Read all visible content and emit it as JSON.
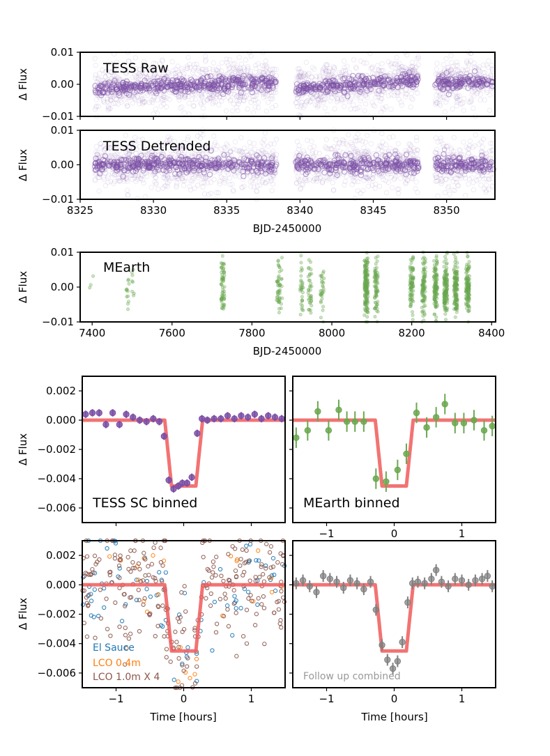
{
  "colors": {
    "tess": "#7b4fa6",
    "mearth": "#6aa84f",
    "model": "#f05a5a",
    "el_sauce": "#1f77b4",
    "lco04": "#ff7f0e",
    "lco10": "#8c564b",
    "combined": "#7f7f7f",
    "followup_label": "#999999"
  },
  "chart_data": [
    {
      "id": "tess_raw",
      "type": "scatter",
      "label": "TESS Raw",
      "ylabel": "Δ Flux",
      "xlabel": "",
      "xlim": [
        8325,
        8353.3
      ],
      "ylim": [
        -0.01,
        0.01
      ],
      "xticks": [
        8325,
        8330,
        8335,
        8340,
        8345,
        8350
      ],
      "yticks": [
        -0.01,
        0.0,
        0.01
      ],
      "ytick_labels": [
        "−0.01",
        "0.00",
        "0.01"
      ],
      "segments": [
        [
          8326.0,
          8338.4
        ],
        [
          8339.7,
          8348.1
        ],
        [
          8349.2,
          8353.2
        ]
      ],
      "trend": [
        [
          8326.0,
          -0.0015
        ],
        [
          8338.4,
          0.0007
        ],
        [
          8339.7,
          -0.0015
        ],
        [
          8348.1,
          0.0012
        ],
        [
          8349.2,
          0.0004
        ],
        [
          8353.2,
          0.0012
        ]
      ],
      "scatter": 0.0035
    },
    {
      "id": "tess_det",
      "type": "scatter",
      "label": "TESS Detrended",
      "ylabel": "Δ Flux",
      "xlabel": "BJD-2450000",
      "xlim": [
        8325,
        8353.3
      ],
      "ylim": [
        -0.01,
        0.01
      ],
      "xticks": [
        8325,
        8330,
        8335,
        8340,
        8345,
        8350
      ],
      "yticks": [
        -0.01,
        0.0,
        0.01
      ],
      "ytick_labels": [
        "−0.01",
        "0.00",
        "0.01"
      ],
      "segments": [
        [
          8326.0,
          8338.4
        ],
        [
          8339.7,
          8348.1
        ],
        [
          8349.2,
          8353.2
        ]
      ],
      "trend": [
        [
          8326.0,
          0.0
        ],
        [
          8353.2,
          0.0
        ]
      ],
      "scatter": 0.0035
    },
    {
      "id": "mearth",
      "type": "scatter",
      "label": "MEarth",
      "ylabel": "Δ Flux",
      "xlabel": "BJD-2450000",
      "xlim": [
        7370,
        8410
      ],
      "ylim": [
        -0.01,
        0.01
      ],
      "xticks": [
        7400,
        7600,
        7800,
        8000,
        8200,
        8400
      ],
      "yticks": [
        -0.01,
        0.0,
        0.01
      ],
      "ytick_labels": [
        "−0.01",
        "0.00",
        "0.01"
      ],
      "groups": [
        [
          7398,
          3
        ],
        [
          7488,
          12
        ],
        [
          7501,
          8
        ],
        [
          7727,
          60
        ],
        [
          7866,
          35
        ],
        [
          7872,
          15
        ],
        [
          7924,
          30
        ],
        [
          7945,
          35
        ],
        [
          7976,
          30
        ],
        [
          8086,
          160
        ],
        [
          8111,
          70
        ],
        [
          8200,
          80
        ],
        [
          8230,
          90
        ],
        [
          8260,
          110
        ],
        [
          8285,
          130
        ],
        [
          8310,
          130
        ],
        [
          8340,
          120
        ]
      ],
      "scatter": 0.004
    },
    {
      "id": "tess_binned",
      "type": "scatter",
      "label": "TESS SC binned",
      "ylabel": "Δ Flux",
      "xlabel": "",
      "xlim": [
        -1.5,
        1.5
      ],
      "ylim": [
        -0.007,
        0.003
      ],
      "yticks": [
        0.002,
        0.0,
        -0.002,
        -0.004,
        -0.006
      ],
      "ytick_labels": [
        "0.002",
        "0.000",
        "−0.002",
        "−0.004",
        "−0.006"
      ],
      "x": [
        -1.45,
        -1.35,
        -1.25,
        -1.15,
        -1.05,
        -0.95,
        -0.85,
        -0.75,
        -0.65,
        -0.55,
        -0.45,
        -0.36,
        -0.29,
        -0.22,
        -0.15,
        -0.08,
        -0.02,
        0.05,
        0.12,
        0.2,
        0.27,
        0.35,
        0.45,
        0.55,
        0.65,
        0.75,
        0.85,
        0.95,
        1.05,
        1.15,
        1.25,
        1.35,
        1.45
      ],
      "y": [
        0.0004,
        0.0005,
        0.0005,
        -0.0003,
        0.0005,
        -0.0003,
        0.0004,
        0.0002,
        0.0,
        -0.0001,
        0.0001,
        -0.0001,
        -0.0011,
        -0.0041,
        -0.0047,
        -0.0045,
        -0.0043,
        -0.0043,
        -0.0039,
        -0.0009,
        0.0001,
        0.0,
        0.0001,
        0.0001,
        0.0003,
        0.0001,
        0.0003,
        0.0002,
        0.0004,
        0.0001,
        0.0003,
        0.0002,
        0.0001
      ],
      "err": 0.00025
    },
    {
      "id": "mearth_binned",
      "type": "scatter",
      "label": "MEarth binned",
      "ylabel": "",
      "xlabel": "",
      "xlim": [
        -1.5,
        1.5
      ],
      "ylim": [
        -0.007,
        0.003
      ],
      "xticks": [
        -1,
        0,
        1
      ],
      "xtick_labels": [
        "−1",
        "0",
        "1"
      ],
      "x": [
        -1.45,
        -1.28,
        -1.13,
        -0.97,
        -0.82,
        -0.7,
        -0.58,
        -0.45,
        -0.27,
        -0.12,
        0.05,
        0.18,
        0.33,
        0.48,
        0.62,
        0.75,
        0.9,
        1.03,
        1.18,
        1.33,
        1.45
      ],
      "y": [
        -0.0012,
        -0.0007,
        0.0006,
        -0.0007,
        0.0007,
        -0.0001,
        -0.0001,
        -0.0001,
        -0.004,
        -0.0042,
        -0.0034,
        -0.0023,
        0.0005,
        -0.0005,
        0.0002,
        0.0011,
        -0.0002,
        -0.0002,
        0.0,
        -0.0007,
        -0.0004
      ],
      "err": 0.0007
    },
    {
      "id": "followup",
      "type": "scatter",
      "ylabel": "Δ Flux",
      "xlabel": "Time [hours]",
      "xlim": [
        -1.5,
        1.5
      ],
      "ylim": [
        -0.007,
        0.003
      ],
      "xticks": [
        -1,
        0,
        1
      ],
      "xtick_labels": [
        "−1",
        "0",
        "1"
      ],
      "yticks": [
        0.002,
        0.0,
        -0.002,
        -0.004,
        -0.006
      ],
      "ytick_labels": [
        "0.002",
        "0.000",
        "−0.002",
        "−0.004",
        "−0.006"
      ],
      "legend": [
        {
          "name": "El Sauce",
          "color": "#1f77b4"
        },
        {
          "name": "LCO 0.4m",
          "color": "#ff7f0e"
        },
        {
          "name": "LCO 1.0m X 4",
          "color": "#8c564b"
        }
      ],
      "counts": {
        "el_sauce": 80,
        "lco04": 25,
        "lco10": 260
      },
      "scatter": 0.0016
    },
    {
      "id": "combined",
      "type": "scatter",
      "label": "Follow up combined",
      "ylabel": "",
      "xlabel": "Time [hours]",
      "xlim": [
        -1.5,
        1.5
      ],
      "ylim": [
        -0.007,
        0.003
      ],
      "xticks": [
        -1,
        0,
        1
      ],
      "xtick_labels": [
        "−1",
        "0",
        "1"
      ],
      "x": [
        -1.45,
        -1.35,
        -1.25,
        -1.15,
        -1.05,
        -0.95,
        -0.85,
        -0.75,
        -0.65,
        -0.55,
        -0.45,
        -0.35,
        -0.27,
        -0.18,
        -0.1,
        -0.02,
        0.05,
        0.12,
        0.2,
        0.27,
        0.35,
        0.45,
        0.55,
        0.62,
        0.7,
        0.8,
        0.9,
        1.0,
        1.1,
        1.2,
        1.3,
        1.38,
        1.45
      ],
      "y": [
        0.0001,
        0.0003,
        -0.0001,
        -0.0005,
        0.0006,
        0.0004,
        0.0002,
        -0.0002,
        0.0003,
        0.0001,
        -0.0003,
        0.0002,
        -0.0017,
        -0.0041,
        -0.0051,
        -0.0057,
        -0.0052,
        -0.0039,
        -0.0012,
        0.0001,
        0.0002,
        0.0001,
        0.0004,
        0.001,
        0.0002,
        -0.0001,
        0.0004,
        0.0003,
        0.0,
        0.0003,
        0.0004,
        0.0006,
        -0.0001
      ],
      "err": 0.0004
    }
  ],
  "model": {
    "depth": -0.0045,
    "t1": 0.28,
    "t2": 0.18
  }
}
